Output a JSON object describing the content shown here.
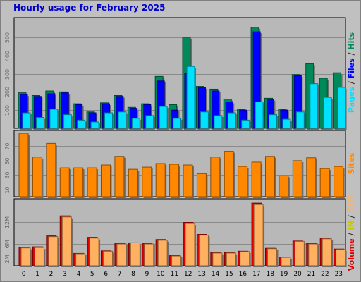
{
  "title": "Hourly usage for February 2025",
  "colors": {
    "pages": "#00e0ff",
    "files": "#0000ff",
    "hits": "#008a59",
    "sites": "#ff8800",
    "volume_in": "#e00000",
    "volume_out": "#ffb060",
    "frame_bg": "#c0c0c0",
    "plot_bg": "#b8b8b8",
    "title_color": "#0000cc"
  },
  "chart_data": [
    {
      "type": "bar",
      "title": "Hourly usage for February 2025",
      "categories": [
        "0",
        "1",
        "2",
        "3",
        "4",
        "5",
        "6",
        "7",
        "8",
        "9",
        "10",
        "11",
        "12",
        "13",
        "14",
        "15",
        "16",
        "17",
        "18",
        "19",
        "20",
        "21",
        "22",
        "23"
      ],
      "ylim": [
        0,
        600
      ],
      "yticks": [
        "100",
        "200",
        "300",
        "400",
        "500"
      ],
      "ytick_values": [
        100,
        200,
        300,
        400,
        500
      ],
      "side_label": [
        {
          "text": "Pages",
          "color": "#00e0ff"
        },
        {
          "text": " / ",
          "color": "#303030"
        },
        {
          "text": "Files",
          "color": "#0000ff"
        },
        {
          "text": " / ",
          "color": "#303030"
        },
        {
          "text": "Hits",
          "color": "#008a59"
        }
      ],
      "series": [
        {
          "name": "Hits",
          "values": [
            195,
            180,
            205,
            200,
            135,
            90,
            140,
            180,
            115,
            135,
            285,
            130,
            500,
            230,
            215,
            160,
            105,
            555,
            165,
            105,
            295,
            355,
            275,
            305
          ]
        },
        {
          "name": "Files",
          "values": [
            185,
            175,
            190,
            195,
            130,
            85,
            135,
            175,
            110,
            130,
            260,
            100,
            300,
            225,
            205,
            145,
            100,
            530,
            160,
            100,
            290,
            0,
            0,
            0
          ]
        },
        {
          "name": "Pages",
          "values": [
            85,
            60,
            105,
            75,
            45,
            35,
            85,
            90,
            55,
            70,
            120,
            55,
            340,
            90,
            70,
            85,
            45,
            145,
            75,
            50,
            90,
            245,
            170,
            225
          ]
        }
      ]
    },
    {
      "type": "bar",
      "title": "",
      "categories": [
        "0",
        "1",
        "2",
        "3",
        "4",
        "5",
        "6",
        "7",
        "8",
        "9",
        "10",
        "11",
        "12",
        "13",
        "14",
        "15",
        "16",
        "17",
        "18",
        "19",
        "20",
        "21",
        "22",
        "23"
      ],
      "ylim": [
        0,
        90
      ],
      "yticks": [
        "10",
        "30",
        "50",
        "70"
      ],
      "ytick_values": [
        10,
        30,
        50,
        70
      ],
      "side_label": [
        {
          "text": "Sites",
          "color": "#ff8800"
        }
      ],
      "series": [
        {
          "name": "Sites",
          "values": [
            88,
            55,
            74,
            40,
            40,
            40,
            44,
            56,
            38,
            41,
            46,
            45,
            44,
            32,
            55,
            63,
            42,
            48,
            56,
            29,
            50,
            54,
            39,
            42
          ]
        }
      ]
    },
    {
      "type": "bar",
      "title": "",
      "categories": [
        "0",
        "1",
        "2",
        "3",
        "4",
        "5",
        "6",
        "7",
        "8",
        "9",
        "10",
        "11",
        "12",
        "13",
        "14",
        "15",
        "16",
        "17",
        "18",
        "19",
        "20",
        "21",
        "22",
        "23"
      ],
      "ylim": [
        0,
        18
      ],
      "yticks": [
        "2M",
        "6M",
        "12M"
      ],
      "ytick_values": [
        2,
        6,
        12
      ],
      "side_label": [
        {
          "text": "Volume",
          "color": "#e00000"
        },
        {
          "text": " / ",
          "color": "#303030"
        },
        {
          "text": "IN",
          "color": "#c8c800"
        },
        {
          "text": " / ",
          "color": "#303030"
        },
        {
          "text": "OUT",
          "color": "#ffb060"
        }
      ],
      "series": [
        {
          "name": "Volume",
          "values": [
            5,
            5.2,
            8.2,
            13.7,
            3.4,
            7.8,
            4.1,
            6.2,
            6.3,
            6.2,
            7.2,
            2.8,
            11.9,
            8.6,
            3.6,
            3.6,
            4,
            17.2,
            4.8,
            2.4,
            6.8,
            6.2,
            7.6,
            4.6
          ]
        },
        {
          "name": "OUT",
          "values": [
            4.9,
            5,
            8,
            13.4,
            3.3,
            7.6,
            4,
            6,
            6.3,
            6,
            7,
            2.7,
            11.6,
            8.4,
            3.5,
            3.5,
            3.9,
            16.8,
            4.7,
            2.3,
            6.7,
            6,
            7.4,
            4.5
          ]
        }
      ]
    }
  ]
}
